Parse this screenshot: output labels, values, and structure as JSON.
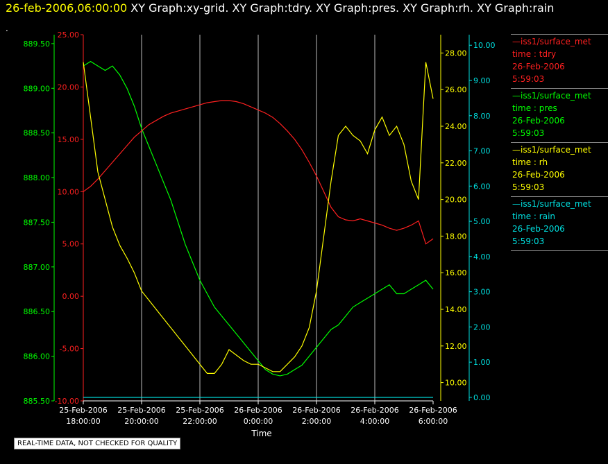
{
  "header": {
    "timestamp": "26-feb-2006,06:00:00",
    "titles": "XY Graph:xy-grid.  XY Graph:tdry.  XY Graph:pres.  XY Graph:rh.  XY Graph:rain",
    "dot": "."
  },
  "disclaimer": "REAL-TIME DATA, NOT CHECKED FOR QUALITY",
  "colors": {
    "pres": "#00ff00",
    "tdry": "#ff2020",
    "rh": "#ffff00",
    "rain": "#00e0e0",
    "grid": "#ffffff"
  },
  "legend": [
    {
      "source": "—iss1/surface_met",
      "var": "time : tdry",
      "date": "26-Feb-2006",
      "time": "5:59:03",
      "color": "#ff2020"
    },
    {
      "source": "—iss1/surface_met",
      "var": "time : pres",
      "date": "26-Feb-2006",
      "time": "5:59:03",
      "color": "#00ff00"
    },
    {
      "source": "—iss1/surface_met",
      "var": "time : rh",
      "date": "26-Feb-2006",
      "time": "5:59:03",
      "color": "#ffff00"
    },
    {
      "source": "—iss1/surface_met",
      "var": "time : rain",
      "date": "26-Feb-2006",
      "time": "5:59:03",
      "color": "#00e0e0"
    }
  ],
  "chart_data": {
    "type": "line",
    "xlabel": "Time",
    "x_ticks": [
      {
        "date": "25-Feb-2006",
        "time": "18:00:00",
        "h": 0
      },
      {
        "date": "25-Feb-2006",
        "time": "20:00:00",
        "h": 2
      },
      {
        "date": "25-Feb-2006",
        "time": "22:00:00",
        "h": 4
      },
      {
        "date": "26-Feb-2006",
        "time": "0:00:00",
        "h": 6
      },
      {
        "date": "26-Feb-2006",
        "time": "2:00:00",
        "h": 8
      },
      {
        "date": "26-Feb-2006",
        "time": "4:00:00",
        "h": 10
      },
      {
        "date": "26-Feb-2006",
        "time": "6:00:00",
        "h": 12
      }
    ],
    "xlim": [
      0,
      12
    ],
    "grid": true,
    "axes": {
      "pres": {
        "ticks": [
          "885.50",
          "886.00",
          "886.50",
          "887.00",
          "887.50",
          "888.00",
          "888.50",
          "889.00",
          "889.50"
        ],
        "ylim": [
          885.5,
          889.6
        ]
      },
      "tdry": {
        "ticks": [
          "-10.00",
          "-5.00",
          "0.00",
          "5.00",
          "10.00",
          "15.00",
          "20.00",
          "25.00"
        ],
        "ylim": [
          -10,
          25
        ]
      },
      "rh": {
        "ticks": [
          "10.00",
          "12.00",
          "14.00",
          "16.00",
          "18.00",
          "20.00",
          "22.00",
          "24.00",
          "26.00",
          "28.00"
        ],
        "ylim": [
          9.0,
          29.0
        ]
      },
      "rain": {
        "ticks": [
          "0.00",
          "1.00",
          "2.00",
          "3.00",
          "4.00",
          "5.00",
          "6.00",
          "7.00",
          "8.00",
          "9.00",
          "10.00"
        ],
        "ylim": [
          -0.1,
          10.3
        ]
      }
    },
    "series": [
      {
        "name": "time : pres",
        "axis": "pres",
        "x": [
          0,
          0.25,
          0.5,
          0.75,
          1,
          1.25,
          1.5,
          1.75,
          2,
          2.25,
          2.5,
          2.75,
          3,
          3.25,
          3.5,
          3.75,
          4,
          4.25,
          4.5,
          4.75,
          5,
          5.25,
          5.5,
          5.75,
          6,
          6.25,
          6.5,
          6.75,
          7,
          7.25,
          7.5,
          7.75,
          8,
          8.25,
          8.5,
          8.75,
          9,
          9.25,
          9.5,
          9.75,
          10,
          10.25,
          10.5,
          10.75,
          11,
          11.25,
          11.5,
          11.75,
          12
        ],
        "y": [
          889.25,
          889.3,
          889.25,
          889.2,
          889.25,
          889.15,
          889.0,
          888.8,
          888.55,
          888.35,
          888.15,
          887.95,
          887.75,
          887.5,
          887.25,
          887.05,
          886.85,
          886.7,
          886.55,
          886.45,
          886.35,
          886.25,
          886.15,
          886.05,
          885.95,
          885.85,
          885.8,
          885.78,
          885.8,
          885.85,
          885.9,
          886.0,
          886.1,
          886.2,
          886.3,
          886.35,
          886.45,
          886.55,
          886.6,
          886.65,
          886.7,
          886.75,
          886.8,
          886.7,
          886.7,
          886.75,
          886.8,
          886.85,
          886.75
        ]
      },
      {
        "name": "time : tdry",
        "axis": "tdry",
        "x": [
          0,
          0.25,
          0.5,
          0.75,
          1,
          1.25,
          1.5,
          1.75,
          2,
          2.25,
          2.5,
          2.75,
          3,
          3.25,
          3.5,
          3.75,
          4,
          4.25,
          4.5,
          4.75,
          5,
          5.25,
          5.5,
          5.75,
          6,
          6.25,
          6.5,
          6.75,
          7,
          7.25,
          7.5,
          7.75,
          8,
          8.25,
          8.5,
          8.75,
          9,
          9.25,
          9.5,
          9.75,
          10,
          10.25,
          10.5,
          10.75,
          11,
          11.25,
          11.5,
          11.75,
          12
        ],
        "y": [
          10.0,
          10.5,
          11.2,
          12.0,
          12.8,
          13.6,
          14.4,
          15.2,
          15.8,
          16.4,
          16.8,
          17.2,
          17.5,
          17.7,
          17.9,
          18.1,
          18.3,
          18.5,
          18.6,
          18.7,
          18.7,
          18.6,
          18.4,
          18.1,
          17.8,
          17.5,
          17.1,
          16.5,
          15.8,
          15.0,
          14.0,
          12.8,
          11.5,
          10.0,
          8.5,
          7.6,
          7.3,
          7.2,
          7.4,
          7.2,
          7.0,
          6.8,
          6.5,
          6.3,
          6.5,
          6.8,
          7.2,
          5.0,
          5.5
        ]
      },
      {
        "name": "time : rh",
        "axis": "rh",
        "x": [
          0,
          0.25,
          0.5,
          0.75,
          1,
          1.25,
          1.5,
          1.75,
          2,
          2.25,
          2.5,
          2.75,
          3,
          3.25,
          3.5,
          3.75,
          4,
          4.25,
          4.5,
          4.75,
          5,
          5.25,
          5.5,
          5.75,
          6,
          6.25,
          6.5,
          6.75,
          7,
          7.25,
          7.5,
          7.75,
          8,
          8.25,
          8.5,
          8.75,
          9,
          9.25,
          9.5,
          9.75,
          10,
          10.25,
          10.5,
          10.75,
          11,
          11.25,
          11.5,
          11.75,
          12
        ],
        "y": [
          27.5,
          24.5,
          21.5,
          20.0,
          18.5,
          17.5,
          16.8,
          16.0,
          15.0,
          14.5,
          14.0,
          13.5,
          13.0,
          12.5,
          12.0,
          11.5,
          11.0,
          10.5,
          10.5,
          11.0,
          11.8,
          11.5,
          11.2,
          11.0,
          11.0,
          10.8,
          10.6,
          10.6,
          11.0,
          11.4,
          12.0,
          13.0,
          15.0,
          18.0,
          21.0,
          23.5,
          24.0,
          23.5,
          23.2,
          22.5,
          23.8,
          24.5,
          23.5,
          24.0,
          23.0,
          21.0,
          20.0,
          27.5,
          25.5
        ]
      },
      {
        "name": "time : rain",
        "axis": "rain",
        "x": [
          0,
          12
        ],
        "y": [
          0,
          0
        ]
      }
    ]
  }
}
